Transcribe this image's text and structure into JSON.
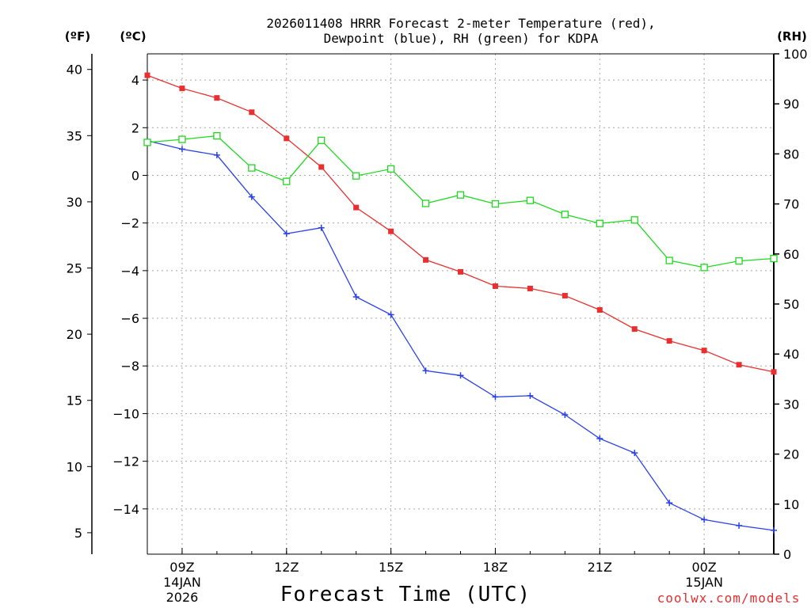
{
  "chart_data": {
    "type": "line",
    "title": "2026011408 HRRR Forecast 2-meter Temperature (red),",
    "subtitle": "Dewpoint (blue), RH (green) for KDPA",
    "xlabel": "Forecast Time (UTC)",
    "credit": "coolwx.com/models",
    "hours": [
      8,
      9,
      10,
      11,
      12,
      13,
      14,
      15,
      16,
      17,
      18,
      19,
      20,
      21,
      22,
      23,
      24,
      25,
      26
    ],
    "xlim": [
      8,
      26
    ],
    "x_ticks": [
      {
        "hour": 9,
        "label": "09Z",
        "date": "14JAN",
        "year": "2026"
      },
      {
        "hour": 12,
        "label": "12Z"
      },
      {
        "hour": 15,
        "label": "15Z"
      },
      {
        "hour": 18,
        "label": "18Z"
      },
      {
        "hour": 21,
        "label": "21Z"
      },
      {
        "hour": 24,
        "label": "00Z",
        "date": "15JAN"
      }
    ],
    "axes": {
      "celsius": {
        "unit": "(ºC)",
        "ylim": [
          -15.9,
          5.1
        ],
        "ticks": [
          "4",
          "2",
          "0",
          "−2",
          "−4",
          "−6",
          "−8",
          "−10",
          "−12",
          "−14"
        ],
        "tick_values": [
          4,
          2,
          0,
          -2,
          -4,
          -6,
          -8,
          -10,
          -12,
          -14
        ]
      },
      "fahrenheit": {
        "unit": "(ºF)",
        "ticks": [
          "40",
          "35",
          "30",
          "25",
          "20",
          "15",
          "10",
          "5"
        ],
        "tick_values": [
          40,
          35,
          30,
          25,
          20,
          15,
          10,
          5
        ]
      },
      "rh": {
        "unit": "(RH)",
        "ylim": [
          0,
          100
        ],
        "ticks": [
          "100",
          "90",
          "80",
          "70",
          "60",
          "50",
          "40",
          "30",
          "20",
          "10",
          "0"
        ],
        "tick_values": [
          100,
          90,
          80,
          70,
          60,
          50,
          40,
          30,
          20,
          10,
          0
        ]
      }
    },
    "series": [
      {
        "name": "Temperature",
        "axis": "celsius",
        "color": "#e83030",
        "marker": "filled-square",
        "values": [
          4.2,
          3.65,
          3.25,
          2.65,
          1.55,
          0.35,
          -1.35,
          -2.35,
          -3.55,
          -4.05,
          -4.65,
          -4.75,
          -5.05,
          -5.65,
          -6.45,
          -6.95,
          -7.35,
          -7.95,
          -8.25
        ]
      },
      {
        "name": "Dewpoint",
        "axis": "celsius",
        "color": "#2a40e8",
        "marker": "plus",
        "values": [
          1.45,
          1.1,
          0.85,
          -0.9,
          -2.45,
          -2.2,
          -5.1,
          -5.85,
          -8.2,
          -8.4,
          -9.3,
          -9.25,
          -10.05,
          -11.05,
          -11.65,
          -13.75,
          -14.45,
          -14.7,
          -14.9
        ]
      },
      {
        "name": "RH",
        "axis": "rh",
        "color": "#20d820",
        "marker": "open-square",
        "values": [
          82.3,
          82.9,
          83.6,
          77.2,
          74.5,
          82.7,
          75.6,
          77.0,
          70.1,
          71.8,
          70.0,
          70.7,
          67.9,
          66.1,
          66.8,
          58.7,
          57.3,
          58.6,
          59.1
        ]
      }
    ]
  }
}
